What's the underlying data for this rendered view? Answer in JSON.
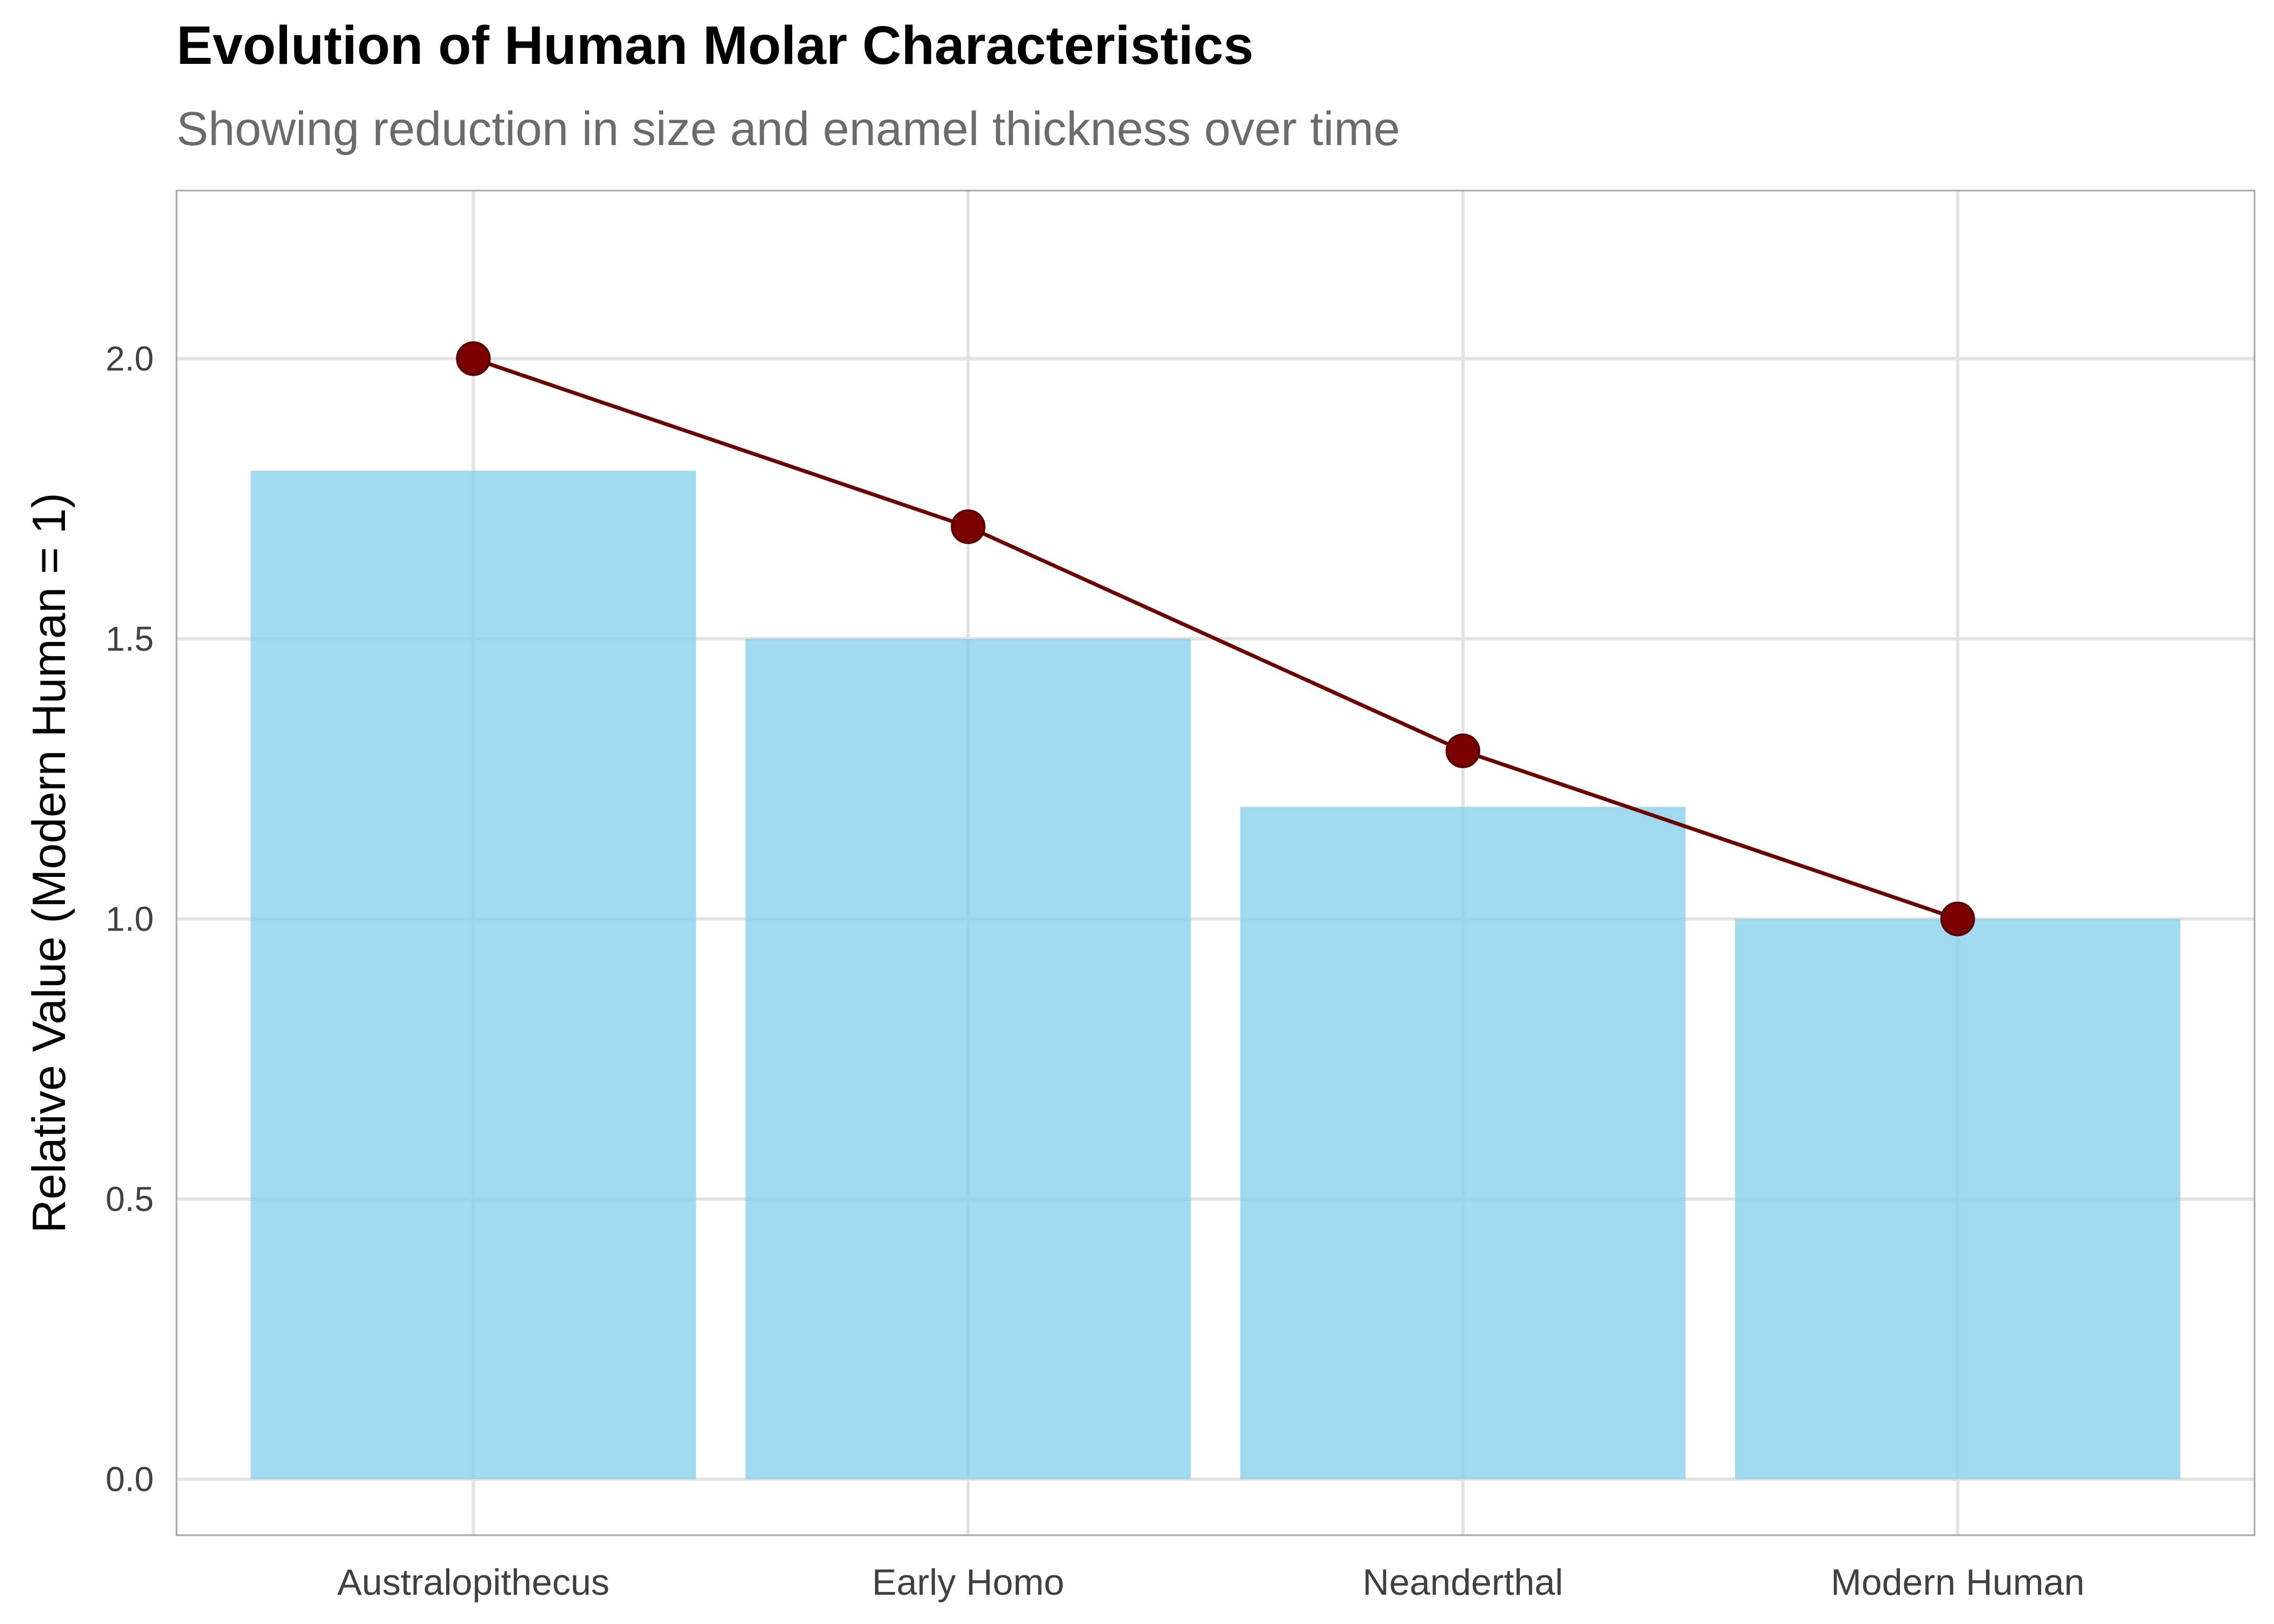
{
  "chart_data": {
    "type": "bar",
    "title": "Evolution of Human Molar Characteristics",
    "subtitle": "Showing reduction in size and enamel thickness over time",
    "xlabel": "",
    "ylabel": "Relative Value (Modern Human = 1)",
    "categories": [
      "Australopithecus",
      "Early Homo",
      "Neanderthal",
      "Modern Human"
    ],
    "series": [
      {
        "type": "bar",
        "values": [
          1.8,
          1.5,
          1.2,
          1.0
        ],
        "color": "#87CEEB"
      },
      {
        "type": "line",
        "values": [
          2.0,
          1.7,
          1.3,
          1.0
        ],
        "color": "#7B0000"
      }
    ],
    "ylim": [
      -0.1,
      2.3
    ],
    "yticks": [
      "0.0",
      "0.5",
      "1.0",
      "1.5",
      "2.0"
    ],
    "ytick_values": [
      0.0,
      0.5,
      1.0,
      1.5,
      2.0
    ],
    "grid": true,
    "legend": "none",
    "colors": {
      "bar": "#87CEEB",
      "line": "#6B0000",
      "point": "#7B0000",
      "grid": "#e3e3e3",
      "panel_border": "#a6a6a6"
    }
  }
}
